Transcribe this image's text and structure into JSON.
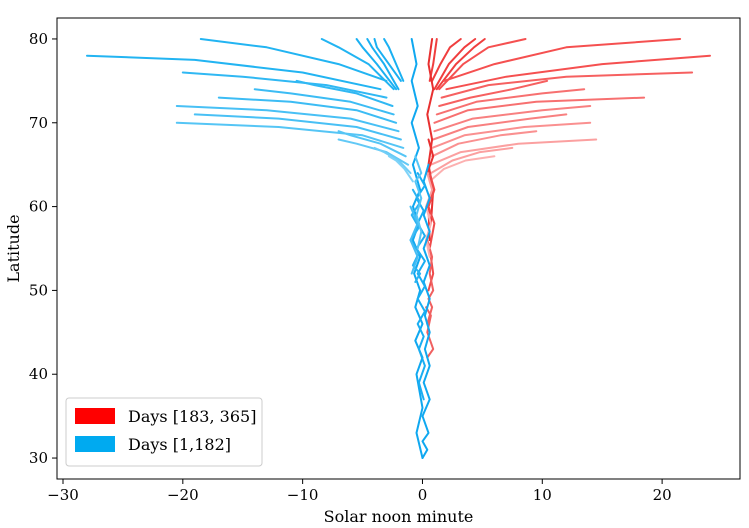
{
  "chart_data": {
    "type": "line",
    "title": "",
    "xlabel": "Solar noon minute",
    "ylabel": "Latitude",
    "xlim": [
      -30.5,
      26.5
    ],
    "ylim": [
      27.5,
      82.5
    ],
    "xticks": [
      -30,
      -20,
      -10,
      0,
      10,
      20
    ],
    "xtick_labels": [
      "−30",
      "−20",
      "−10",
      "0",
      "10",
      "20"
    ],
    "yticks": [
      30,
      40,
      50,
      60,
      70,
      80
    ],
    "ytick_labels": [
      "30",
      "40",
      "50",
      "60",
      "70",
      "80"
    ],
    "grid": false,
    "legend_position": "lower-left",
    "legend": [
      {
        "label": "Days [183, 365]",
        "color": "#ff0000"
      },
      {
        "label": "Days [1,182]",
        "color": "#00aaf0"
      }
    ],
    "series": [
      {
        "group": "red",
        "color": "#f03e3e",
        "x": [
          0.6,
          0.9,
          1.1,
          1.2
        ],
        "y": [
          75,
          77,
          79,
          80
        ]
      },
      {
        "group": "red",
        "color": "#f03e3e",
        "x": [
          0.8,
          1.5,
          2.3,
          3.2
        ],
        "y": [
          75,
          77,
          79,
          80
        ]
      },
      {
        "group": "red",
        "color": "#f03e3e",
        "x": [
          1.0,
          2.2,
          3.5,
          4.4
        ],
        "y": [
          74,
          77,
          79,
          80
        ]
      },
      {
        "group": "red",
        "color": "#f03e3e",
        "x": [
          1.2,
          2.8,
          4.3,
          5.2
        ],
        "y": [
          74,
          77,
          79,
          80
        ]
      },
      {
        "group": "red",
        "color": "#f55050",
        "x": [
          1.4,
          3.4,
          5.5,
          8.6
        ],
        "y": [
          74,
          77,
          79,
          80
        ]
      },
      {
        "group": "red",
        "color": "#f55050",
        "x": [
          1.8,
          6.0,
          12.0,
          21.5
        ],
        "y": [
          75,
          77,
          79,
          80
        ]
      },
      {
        "group": "red",
        "color": "#f55050",
        "x": [
          2.0,
          7.0,
          15.0,
          24.0
        ],
        "y": [
          74,
          75.5,
          77,
          78
        ]
      },
      {
        "group": "red",
        "color": "#f66060",
        "x": [
          1.6,
          5.5,
          12.0,
          22.5
        ],
        "y": [
          73,
          74.5,
          75.5,
          76
        ]
      },
      {
        "group": "red",
        "color": "#f66060",
        "x": [
          1.4,
          4.0,
          7.5,
          10.4
        ],
        "y": [
          72,
          73,
          74,
          75
        ]
      },
      {
        "group": "red",
        "color": "#f77070",
        "x": [
          1.2,
          4.5,
          10.0,
          13.5
        ],
        "y": [
          71,
          72.5,
          73.5,
          74
        ]
      },
      {
        "group": "red",
        "color": "#f77070",
        "x": [
          1.0,
          3.8,
          9.5,
          18.5
        ],
        "y": [
          70,
          71.5,
          72.5,
          73
        ]
      },
      {
        "group": "red",
        "color": "#f88080",
        "x": [
          1.0,
          4.2,
          10.0,
          14.0
        ],
        "y": [
          69,
          70.5,
          71.5,
          72
        ]
      },
      {
        "group": "red",
        "color": "#f88080",
        "x": [
          0.9,
          3.8,
          9.0,
          12.0
        ],
        "y": [
          68,
          69.5,
          70.5,
          71
        ]
      },
      {
        "group": "red",
        "color": "#fa9090",
        "x": [
          0.8,
          3.5,
          8.5,
          14.0
        ],
        "y": [
          67,
          68.5,
          69.5,
          70
        ]
      },
      {
        "group": "red",
        "color": "#fa9090",
        "x": [
          0.8,
          3.0,
          6.5,
          9.5
        ],
        "y": [
          66,
          67.5,
          68.5,
          69
        ]
      },
      {
        "group": "red",
        "color": "#fba0a0",
        "x": [
          0.7,
          3.2,
          8.0,
          14.5
        ],
        "y": [
          65,
          66.5,
          67.5,
          68
        ]
      },
      {
        "group": "red",
        "color": "#fba0a0",
        "x": [
          0.7,
          2.5,
          4.8,
          7.5
        ],
        "y": [
          64,
          65.5,
          66.5,
          67
        ]
      },
      {
        "group": "red",
        "color": "#fcb0b0",
        "x": [
          0.6,
          1.8,
          3.6,
          6.0
        ],
        "y": [
          63,
          64.5,
          65.5,
          66
        ]
      },
      {
        "group": "red",
        "color": "#e83030",
        "x": [
          0.8,
          0.5,
          0.9,
          0.4,
          0.8,
          0.5,
          0.9,
          0.7
        ],
        "y": [
          80,
          77,
          74,
          71,
          68,
          65,
          62,
          58
        ]
      },
      {
        "group": "red",
        "color": "#e83030",
        "x": [
          0.5,
          0.9,
          0.4,
          0.9,
          0.5,
          0.6
        ],
        "y": [
          68,
          66,
          64,
          62,
          60,
          56
        ]
      },
      {
        "group": "red",
        "color": "#ef4a4a",
        "x": [
          0.6,
          1.0,
          0.5,
          1.0,
          0.6,
          0.9,
          0.5
        ],
        "y": [
          64,
          62,
          60,
          58,
          55,
          52,
          50
        ]
      },
      {
        "group": "red",
        "color": "#f06060",
        "x": [
          0.4,
          0.8,
          0.6,
          0.9,
          0.5,
          0.8,
          0.4
        ],
        "y": [
          56,
          54,
          52,
          50,
          49,
          48,
          46
        ]
      },
      {
        "group": "red",
        "color": "#f06060",
        "x": [
          0.3,
          0.7,
          0.4,
          0.9,
          0.4
        ],
        "y": [
          48,
          47,
          45,
          43,
          42
        ]
      },
      {
        "group": "red",
        "color": "#fba0a0",
        "x": [
          0.4,
          0.8,
          0.3,
          0.7,
          0.3,
          0.6
        ],
        "y": [
          64,
          62,
          60,
          58,
          56,
          55
        ]
      },
      {
        "group": "red",
        "color": "#fcb0b0",
        "x": [
          0.3,
          0.7,
          0.3,
          0.6
        ],
        "y": [
          60,
          58,
          56,
          54
        ]
      },
      {
        "group": "blue",
        "color": "#1ab0f2",
        "x": [
          -1.6,
          -2.2,
          -2.8,
          -3.2
        ],
        "y": [
          75,
          77,
          79,
          80
        ]
      },
      {
        "group": "blue",
        "color": "#1ab0f2",
        "x": [
          -1.8,
          -2.8,
          -3.8,
          -4.0
        ],
        "y": [
          75,
          77,
          79,
          80
        ]
      },
      {
        "group": "blue",
        "color": "#1ab0f2",
        "x": [
          -2.0,
          -3.2,
          -4.2,
          -4.6
        ],
        "y": [
          74,
          77,
          79,
          80
        ]
      },
      {
        "group": "blue",
        "color": "#1ab0f2",
        "x": [
          -2.2,
          -3.8,
          -5.0,
          -5.5
        ],
        "y": [
          74,
          77,
          79,
          80
        ]
      },
      {
        "group": "blue",
        "color": "#22b4f2",
        "x": [
          -2.4,
          -4.5,
          -7.0,
          -8.4
        ],
        "y": [
          74,
          77,
          79,
          80
        ]
      },
      {
        "group": "blue",
        "color": "#22b4f2",
        "x": [
          -3.0,
          -7.0,
          -13.0,
          -18.5
        ],
        "y": [
          75,
          77,
          79,
          80
        ]
      },
      {
        "group": "blue",
        "color": "#22b4f2",
        "x": [
          -3.5,
          -10.0,
          -19.0,
          -28.0
        ],
        "y": [
          74,
          76,
          77.5,
          78
        ]
      },
      {
        "group": "blue",
        "color": "#30b8f3",
        "x": [
          -3.0,
          -8.0,
          -15.0,
          -20.0
        ],
        "y": [
          73,
          74.5,
          75.5,
          76
        ]
      },
      {
        "group": "blue",
        "color": "#30b8f3",
        "x": [
          -2.5,
          -5.5,
          -9.0,
          -10.5
        ],
        "y": [
          72,
          73.5,
          74.5,
          75
        ]
      },
      {
        "group": "blue",
        "color": "#3cbcf4",
        "x": [
          -2.4,
          -6.0,
          -11.0,
          -14.0
        ],
        "y": [
          71,
          72.5,
          73.5,
          74
        ]
      },
      {
        "group": "blue",
        "color": "#3cbcf4",
        "x": [
          -2.2,
          -5.5,
          -11.0,
          -17.0
        ],
        "y": [
          70,
          71.5,
          72.5,
          73
        ]
      },
      {
        "group": "blue",
        "color": "#48c0f5",
        "x": [
          -2.0,
          -6.0,
          -13.0,
          -20.5
        ],
        "y": [
          69,
          70.5,
          71.5,
          72
        ]
      },
      {
        "group": "blue",
        "color": "#48c0f5",
        "x": [
          -1.8,
          -5.5,
          -12.0,
          -19.0
        ],
        "y": [
          68,
          69.5,
          70.5,
          71
        ]
      },
      {
        "group": "blue",
        "color": "#55c5f5",
        "x": [
          -1.6,
          -5.0,
          -12.0,
          -20.5
        ],
        "y": [
          67,
          68.5,
          69.5,
          70
        ]
      },
      {
        "group": "blue",
        "color": "#55c5f5",
        "x": [
          -1.4,
          -3.5,
          -6.0,
          -7.0
        ],
        "y": [
          66,
          67.5,
          68.5,
          69
        ]
      },
      {
        "group": "blue",
        "color": "#62c9f6",
        "x": [
          -1.2,
          -3.0,
          -5.5,
          -7.0
        ],
        "y": [
          65,
          66.5,
          67.5,
          68
        ]
      },
      {
        "group": "blue",
        "color": "#70cef7",
        "x": [
          -1.0,
          -2.0,
          -3.2,
          -4.0
        ],
        "y": [
          64,
          65.5,
          66.5,
          67
        ]
      },
      {
        "group": "blue",
        "color": "#7fd3f8",
        "x": [
          -0.8,
          -1.5,
          -2.2,
          -2.8
        ],
        "y": [
          63,
          64.5,
          65.5,
          66
        ]
      },
      {
        "group": "blue",
        "color": "#0fa8f0",
        "x": [
          -0.9,
          -0.5,
          -0.9,
          -0.4,
          -0.9,
          -0.3,
          -0.8,
          -0.2,
          -0.8,
          -0.3,
          -0.8,
          -0.2,
          -0.7,
          -0.2,
          -0.6,
          0.0,
          -0.6,
          0.0,
          -0.5,
          0.0,
          -0.5,
          0.0
        ],
        "y": [
          80,
          77,
          75,
          72,
          70,
          67,
          65,
          62,
          60,
          58,
          56,
          54,
          52,
          50,
          48,
          46,
          44,
          42,
          40,
          36,
          33,
          30
        ]
      },
      {
        "group": "blue",
        "color": "#0fa8f0",
        "x": [
          0.5,
          0.1,
          0.6,
          0.1,
          0.6,
          0.1,
          0.6,
          0.1,
          0.6,
          0.2,
          0.6,
          0.2,
          0.6,
          0.1,
          0.6,
          0.0,
          0.5,
          0.0,
          0.4,
          0.0
        ],
        "y": [
          65,
          63,
          61,
          59,
          57,
          55,
          53,
          51,
          49,
          47,
          45,
          43,
          41,
          39,
          37,
          35,
          33,
          32,
          31,
          30
        ]
      },
      {
        "group": "blue",
        "color": "#1aaef2",
        "x": [
          -0.4,
          0.2,
          -0.5,
          0.1,
          -0.4,
          0.2,
          -0.5,
          0.2,
          -0.4,
          0.2,
          -0.4,
          0.2,
          -0.4,
          0.1,
          -0.3,
          0.2,
          -0.3,
          0.1
        ],
        "y": [
          64,
          62.5,
          61,
          59.5,
          58,
          56.5,
          55,
          53.5,
          52,
          50.5,
          49,
          47.5,
          46,
          44.5,
          43,
          41,
          39,
          37
        ]
      },
      {
        "group": "blue",
        "color": "#2ab3f2",
        "x": [
          -0.8,
          -0.2,
          -0.9,
          -0.3,
          -1.0,
          -0.3,
          -0.8,
          -0.2,
          -0.6
        ],
        "y": [
          62,
          60.5,
          59,
          57.5,
          56,
          54.5,
          53,
          52,
          51
        ]
      },
      {
        "group": "blue",
        "color": "#45bdf4",
        "x": [
          -1.0,
          -0.4,
          -1.0,
          -0.4,
          -0.9
        ],
        "y": [
          60,
          58,
          56,
          54,
          52
        ]
      },
      {
        "group": "blue",
        "color": "#55c5f5",
        "x": [
          -0.6,
          -0.1,
          -0.6,
          -0.1,
          -0.5,
          -0.1,
          -0.4
        ],
        "y": [
          66,
          64,
          63,
          61,
          59,
          57,
          55
        ]
      }
    ]
  }
}
